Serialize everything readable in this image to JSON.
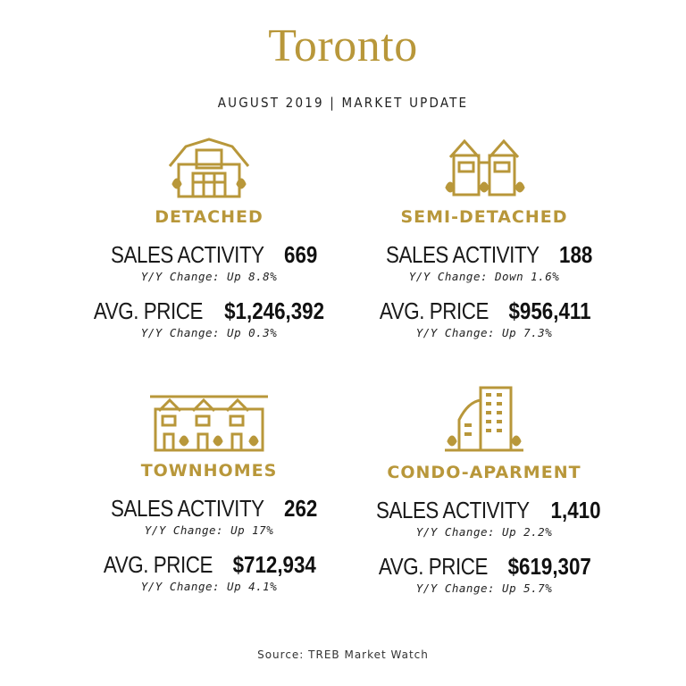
{
  "title": "Toronto",
  "subtitle": "AUGUST 2019  |  MARKET UPDATE",
  "accent_color": "#b8973a",
  "cards": [
    {
      "icon": "detached-house-icon",
      "label": "DETACHED",
      "sales_label": "SALES ACTIVITY",
      "sales_value": "669",
      "sales_change": "Y/Y Change: Up 8.8%",
      "price_label": "AVG. PRICE",
      "price_value": "$1,246,392",
      "price_change": "Y/Y Change: Up 0.3%"
    },
    {
      "icon": "semi-detached-house-icon",
      "label": "SEMI-DETACHED",
      "sales_label": "SALES ACTIVITY",
      "sales_value": "188",
      "sales_change": "Y/Y Change: Down 1.6%",
      "price_label": "AVG. PRICE",
      "price_value": "$956,411",
      "price_change": "Y/Y Change: Up 7.3%"
    },
    {
      "icon": "townhomes-icon",
      "label": "TOWNHOMES",
      "sales_label": "SALES ACTIVITY",
      "sales_value": "262",
      "sales_change": "Y/Y Change: Up 17%",
      "price_label": "AVG. PRICE",
      "price_value": "$712,934",
      "price_change": "Y/Y Change: Up 4.1%"
    },
    {
      "icon": "condo-building-icon",
      "label": "CONDO-APARMENT",
      "sales_label": "SALES ACTIVITY",
      "sales_value": "1,410",
      "sales_change": "Y/Y Change: Up 2.2%",
      "price_label": "AVG. PRICE",
      "price_value": "$619,307",
      "price_change": "Y/Y Change: Up 5.7%"
    }
  ],
  "source": "Source: TREB Market Watch"
}
